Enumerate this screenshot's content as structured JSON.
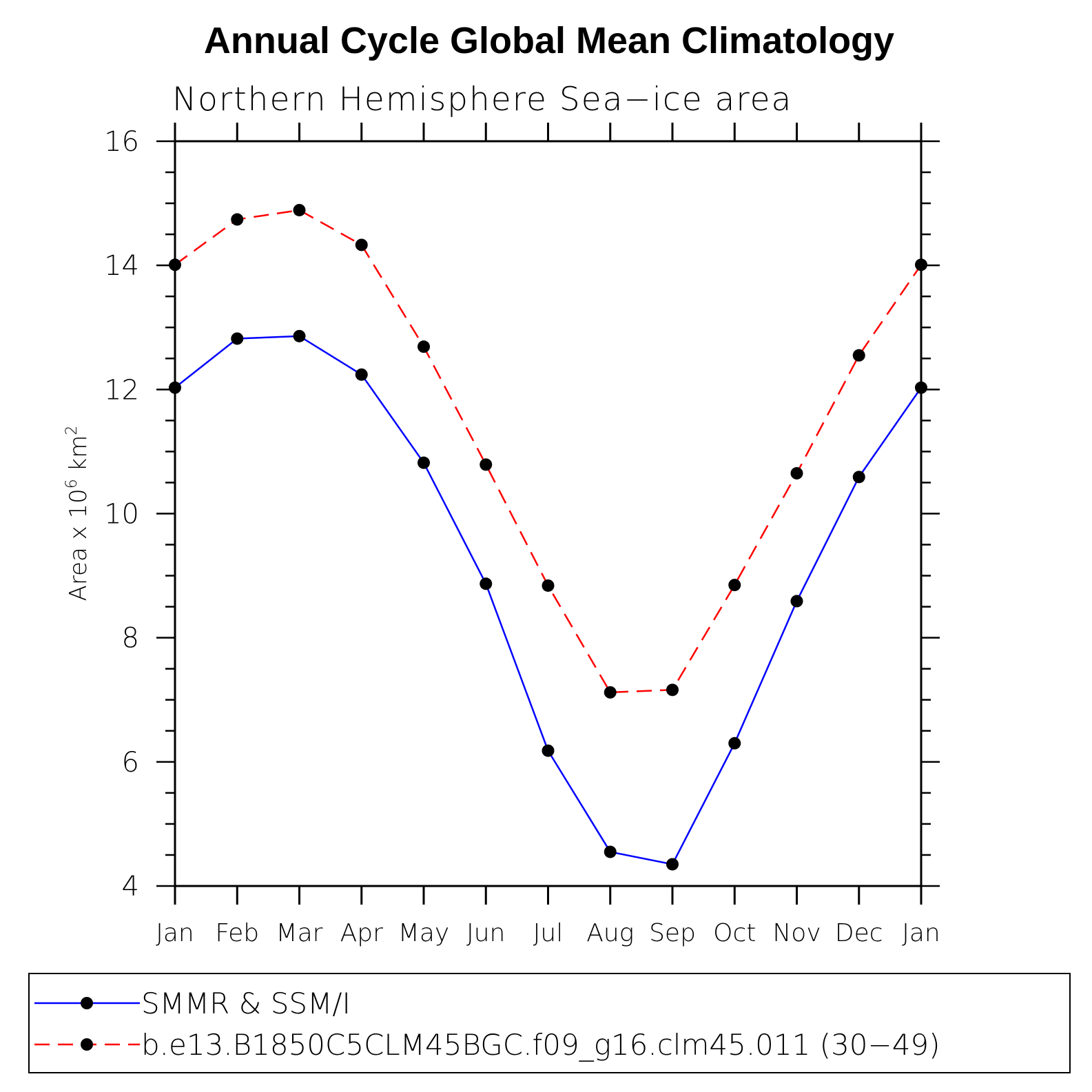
{
  "chart_data": {
    "type": "line",
    "title": "Annual Cycle Global Mean Climatology",
    "subtitle": "Northern Hemisphere Sea−ice area",
    "ylabel": {
      "prefix": "Area x 10",
      "exp1": "6",
      "unit": " km",
      "exp2": "2"
    },
    "categories": [
      "Jan",
      "Feb",
      "Mar",
      "Apr",
      "May",
      "Jun",
      "Jul",
      "Aug",
      "Sep",
      "Oct",
      "Nov",
      "Dec",
      "Jan"
    ],
    "ylim": [
      4,
      16
    ],
    "yticks": [
      4,
      6,
      8,
      10,
      12,
      14,
      16
    ],
    "series": [
      {
        "name": "SMMR & SSM/I",
        "color": "#0000ff",
        "dash": "solid",
        "values": [
          12.03,
          12.82,
          12.86,
          12.24,
          10.82,
          8.87,
          6.18,
          4.55,
          4.35,
          6.3,
          8.59,
          10.59,
          12.03
        ]
      },
      {
        "name": "b.e13.B1850C5CLM45BGC.f09_g16.clm45.011 (30−49)",
        "color": "#ff0000",
        "dash": "dashed",
        "values": [
          14.01,
          14.74,
          14.89,
          14.33,
          12.69,
          10.79,
          8.84,
          7.12,
          7.16,
          8.85,
          10.65,
          12.55,
          14.01
        ]
      }
    ],
    "legend_position": "bottom"
  }
}
